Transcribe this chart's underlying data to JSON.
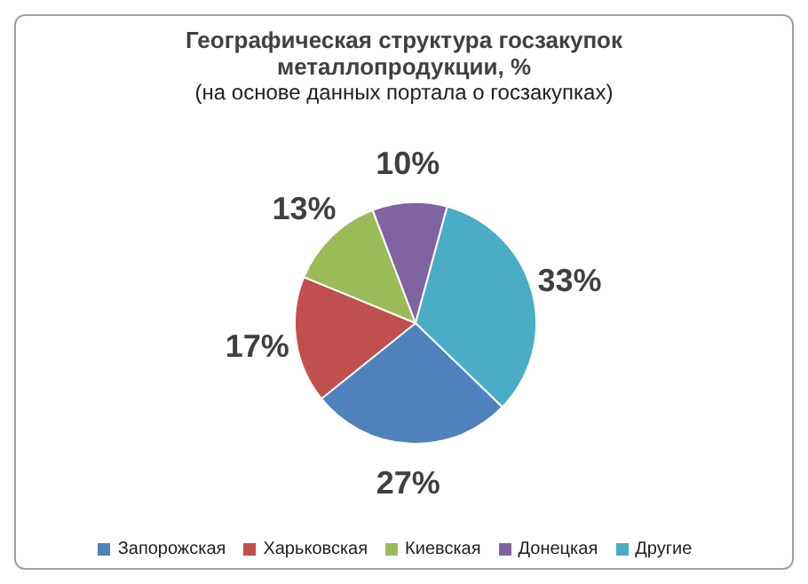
{
  "chart_data": {
    "type": "pie",
    "title": "Географическая структура госзакупок металлопродукции, %",
    "subtitle": "(на основе данных портала о госзакупках)",
    "categories": [
      "Запорожская",
      "Харьковская",
      "Киевская",
      "Донецкая",
      "Другие"
    ],
    "values": [
      27,
      17,
      13,
      10,
      33
    ],
    "value_labels": [
      "27%",
      "17%",
      "13%",
      "10%",
      "33%"
    ],
    "colors": [
      "#4f81bd",
      "#c0504d",
      "#9bbb59",
      "#8064a2",
      "#4bacc6"
    ],
    "legend": "bottom"
  }
}
